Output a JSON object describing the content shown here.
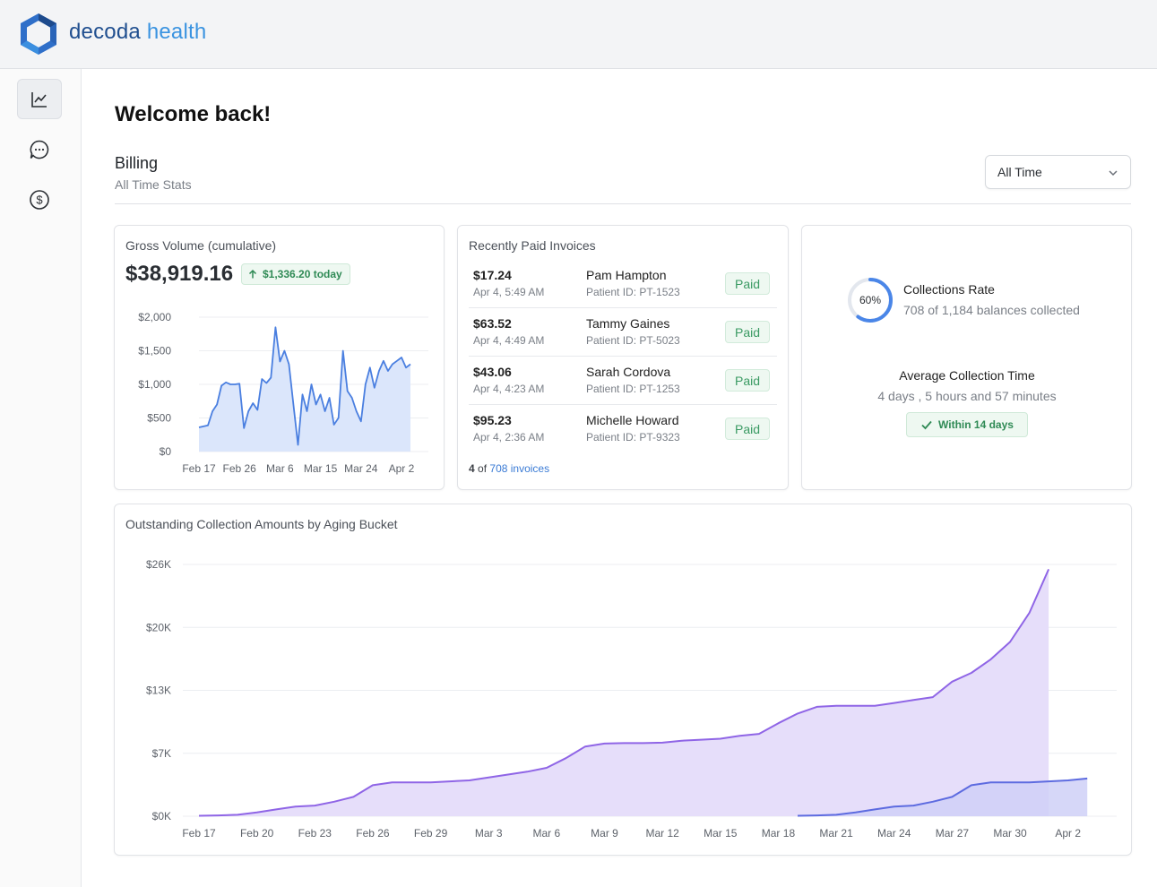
{
  "brand": {
    "word1": "decoda",
    "word2": "health",
    "logo_icon": "hexagon-logo-icon"
  },
  "sidebar": {
    "items": [
      {
        "icon": "line-chart-icon",
        "active": true
      },
      {
        "icon": "chat-bubble-icon",
        "active": false
      },
      {
        "icon": "dollar-circle-icon",
        "active": false
      }
    ]
  },
  "page": {
    "welcome": "Welcome back!",
    "section_title": "Billing",
    "section_subtitle": "All Time Stats"
  },
  "filter": {
    "selected": "All Time"
  },
  "gross_volume": {
    "title": "Gross Volume (cumulative)",
    "value": "$38,919.16",
    "today_badge": "$1,336.20 today"
  },
  "invoices": {
    "title": "Recently Paid Invoices",
    "rows": [
      {
        "amount": "$17.24",
        "date": "Apr 4, 5:49 AM",
        "name": "Pam Hampton",
        "patient_id": "Patient ID: PT-1523",
        "status": "Paid"
      },
      {
        "amount": "$63.52",
        "date": "Apr 4, 4:49 AM",
        "name": "Tammy Gaines",
        "patient_id": "Patient ID: PT-5023",
        "status": "Paid"
      },
      {
        "amount": "$43.06",
        "date": "Apr 4, 4:23 AM",
        "name": "Sarah Cordova",
        "patient_id": "Patient ID: PT-1253",
        "status": "Paid"
      },
      {
        "amount": "$95.23",
        "date": "Apr 4, 2:36 AM",
        "name": "Michelle Howard",
        "patient_id": "Patient ID: PT-9323",
        "status": "Paid"
      }
    ],
    "footer_count": "4",
    "footer_of": "of",
    "footer_link": "708 invoices"
  },
  "collections": {
    "rate_percent": 60,
    "rate_label": "60%",
    "title": "Collections Rate",
    "subtitle": "708 of 1,184 balances collected",
    "avg_title": "Average Collection Time",
    "avg_value": "4 days , 5 hours and 57 minutes",
    "avg_badge": "Within 14 days"
  },
  "aging": {
    "title": "Outstanding Collection Amounts by Aging Bucket"
  },
  "chart_data": [
    {
      "type": "area",
      "title": "Gross Volume (cumulative)",
      "ylim": [
        0,
        2000
      ],
      "yticks": [
        0,
        500,
        1000,
        1500,
        2000
      ],
      "ytick_labels": [
        "$0",
        "$500",
        "$1,000",
        "$1,500",
        "$2,000"
      ],
      "xticks": [
        0,
        9,
        18,
        27,
        36,
        45
      ],
      "xtick_labels": [
        "Feb 17",
        "Feb 26",
        "Mar 6",
        "Mar 15",
        "Mar 24",
        "Apr 2"
      ],
      "x": [
        0,
        2,
        3,
        4,
        5,
        6,
        7,
        8,
        9,
        10,
        11,
        12,
        13,
        14,
        15,
        16,
        17,
        18,
        19,
        20,
        21,
        22,
        23,
        24,
        25,
        26,
        27,
        28,
        29,
        30,
        31,
        32,
        33,
        34,
        35,
        36,
        37,
        38,
        39,
        40,
        41,
        42,
        43,
        44,
        45,
        46,
        47
      ],
      "values": [
        360,
        390,
        600,
        700,
        980,
        1030,
        1000,
        1000,
        1010,
        350,
        600,
        720,
        620,
        1080,
        1020,
        1100,
        1850,
        1340,
        1500,
        1300,
        700,
        100,
        850,
        600,
        1000,
        700,
        850,
        600,
        800,
        400,
        500,
        1500,
        900,
        800,
        600,
        450,
        1000,
        1250,
        950,
        1200,
        1350,
        1200,
        1300,
        1350,
        1400,
        1250,
        1300
      ]
    },
    {
      "type": "area",
      "title": "Outstanding Collection Amounts by Aging Bucket",
      "ylim": [
        0,
        26000
      ],
      "yticks": [
        0,
        6500,
        13000,
        19500,
        26000
      ],
      "ytick_labels": [
        "$0K",
        "$7K",
        "$13K",
        "$20K",
        "$26K"
      ],
      "xtick_labels": [
        "Feb 17",
        "Feb 20",
        "Feb 23",
        "Feb 26",
        "Feb 29",
        "Mar 3",
        "Mar 6",
        "Mar 9",
        "Mar 12",
        "Mar 15",
        "Mar 18",
        "Mar 21",
        "Mar 24",
        "Mar 27",
        "Mar 30",
        "Apr 2"
      ],
      "xticks": [
        0,
        3,
        6,
        9,
        12,
        15,
        18,
        21,
        24,
        27,
        30,
        33,
        36,
        39,
        42,
        45
      ],
      "series": [
        {
          "x": [
            0,
            1,
            2,
            3,
            4,
            5,
            6,
            7,
            8,
            9,
            10,
            11,
            12,
            13,
            14,
            15,
            16,
            17,
            18,
            19,
            20,
            21,
            22,
            23,
            24,
            25,
            26,
            27,
            28,
            29,
            30,
            31,
            32,
            33,
            34,
            35,
            36,
            37,
            38,
            39,
            40,
            41,
            42,
            43,
            44,
            45,
            46
          ],
          "values": [
            50,
            80,
            150,
            400,
            700,
            1000,
            1100,
            1500,
            2000,
            3200,
            3500,
            3500,
            3500,
            3600,
            3700,
            4000,
            4300,
            4600,
            5000,
            6000,
            7200,
            7500,
            7550,
            7550,
            7600,
            7800,
            7900,
            8000,
            8300,
            8500,
            9600,
            10600,
            11300,
            11400,
            11400,
            11400,
            11700,
            12000,
            12300,
            13900,
            14800,
            16200,
            18000,
            21000,
            25500,
            0,
            0
          ]
        },
        {
          "x": [
            31,
            32,
            33,
            34,
            35,
            36,
            37,
            38,
            39,
            40,
            41,
            42,
            43,
            44,
            45,
            46
          ],
          "values": [
            50,
            80,
            150,
            400,
            700,
            1000,
            1100,
            1500,
            2000,
            3200,
            3500,
            3500,
            3500,
            3600,
            3700,
            3900
          ]
        }
      ]
    }
  ]
}
